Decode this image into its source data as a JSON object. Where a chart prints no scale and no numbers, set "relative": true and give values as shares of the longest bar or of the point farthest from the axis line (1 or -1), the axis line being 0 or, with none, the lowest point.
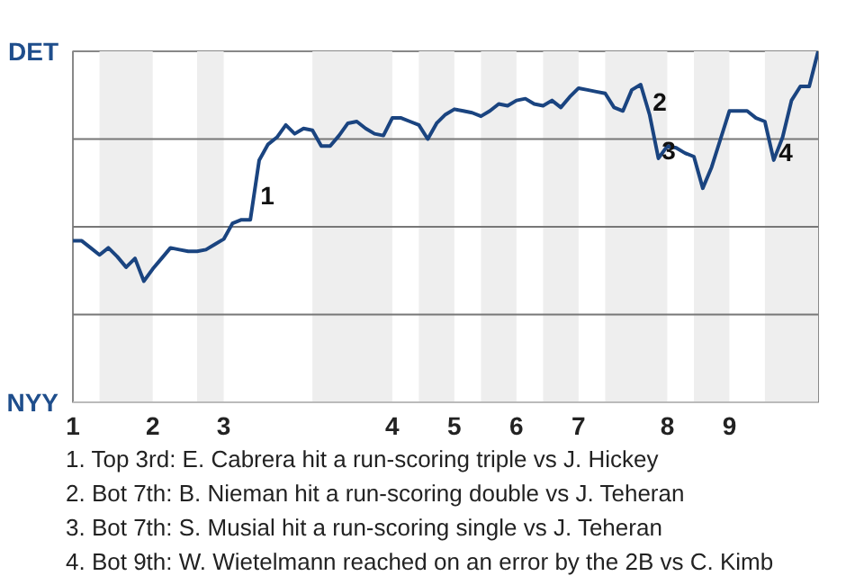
{
  "chart_data": {
    "type": "line",
    "relative": true,
    "categories": [
      "1",
      null,
      null,
      null,
      null,
      null,
      null,
      null,
      null,
      "2",
      null,
      null,
      null,
      null,
      null,
      null,
      null,
      "3",
      null,
      null,
      null,
      null,
      null,
      null,
      null,
      null,
      null,
      null,
      null,
      null,
      null,
      null,
      null,
      null,
      null,
      null,
      "4",
      null,
      null,
      null,
      null,
      null,
      null,
      "5",
      null,
      null,
      null,
      null,
      null,
      null,
      "6",
      null,
      null,
      null,
      null,
      null,
      null,
      "7",
      null,
      null,
      null,
      null,
      null,
      null,
      null,
      null,
      null,
      "8",
      null,
      null,
      null,
      null,
      null,
      null,
      "9",
      null,
      null,
      null,
      null,
      null,
      null,
      null,
      null,
      null,
      null
    ],
    "series": [
      {
        "color": "#1a4480",
        "values": [
          0.46,
          0.46,
          0.44,
          0.42,
          0.44,
          0.415,
          0.385,
          0.41,
          0.345,
          0.38,
          0.41,
          0.44,
          0.435,
          0.43,
          0.43,
          0.435,
          0.45,
          0.465,
          0.51,
          0.52,
          0.52,
          0.69,
          0.735,
          0.755,
          0.79,
          0.765,
          0.78,
          0.775,
          0.73,
          0.73,
          0.76,
          0.795,
          0.8,
          0.78,
          0.765,
          0.76,
          0.81,
          0.81,
          0.8,
          0.79,
          0.75,
          0.795,
          0.82,
          0.835,
          0.83,
          0.825,
          0.815,
          0.83,
          0.85,
          0.845,
          0.86,
          0.865,
          0.85,
          0.845,
          0.86,
          0.84,
          0.87,
          0.895,
          0.89,
          0.885,
          0.88,
          0.84,
          0.83,
          0.89,
          0.905,
          0.82,
          0.695,
          0.73,
          0.725,
          0.71,
          0.7,
          0.61,
          0.67,
          0.75,
          0.83,
          0.83,
          0.83,
          0.81,
          0.8,
          0.69,
          0.755,
          0.86,
          0.9,
          0.9,
          1
        ],
        "name": null
      }
    ],
    "ref_lines": [
      {
        "axis": "y",
        "value": 0.25,
        "color": "#777777"
      },
      {
        "axis": "y",
        "value": 0.5,
        "color": "#777777"
      },
      {
        "axis": "y",
        "value": 0.75,
        "color": "#777777"
      }
    ],
    "annotations": [
      "DET",
      "NYY",
      "1",
      "2",
      "3",
      "4",
      "1. Top 3rd: E. Cabrera hit a run-scoring triple vs J. Hickey",
      "2. Bot 7th: B. Nieman hit a run-scoring double vs J. Teheran",
      "3. Bot 7th: S. Musial hit a run-scoring single vs J. Teheran",
      "4. Bot 9th: W. Wietelmann reached on an error by the 2B vs C. Kimb"
    ]
  }
}
